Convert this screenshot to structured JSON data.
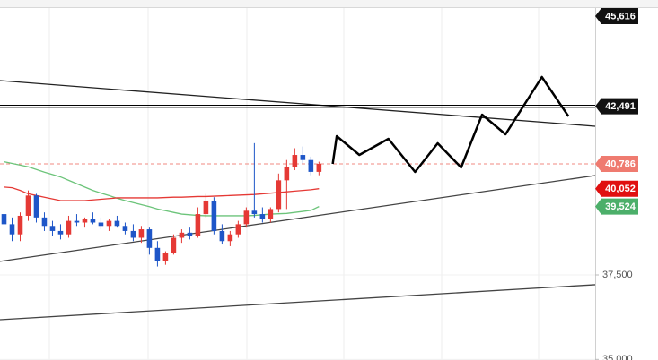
{
  "chart_data": {
    "type": "candlestick",
    "up_color": "#e53935",
    "down_color": "#1e56c8",
    "xlim": [
      -0.5,
      73.2
    ],
    "ylim": [
      34982,
      45636
    ],
    "yticks": [
      {
        "value": 35000,
        "label": "35,000"
      },
      {
        "value": 37500,
        "label": "37,500"
      }
    ],
    "grid": true,
    "ohlc": [
      [
        39300,
        39500,
        38900,
        39000
      ],
      [
        39000,
        39200,
        38500,
        38700
      ],
      [
        38700,
        39350,
        38500,
        39250
      ],
      [
        39250,
        40000,
        39100,
        39850
      ],
      [
        39850,
        39900,
        39050,
        39200
      ],
      [
        39200,
        39350,
        38800,
        38950
      ],
      [
        38950,
        39100,
        38650,
        38800
      ],
      [
        38800,
        39000,
        38550,
        38700
      ],
      [
        38700,
        39250,
        38600,
        39100
      ],
      [
        39100,
        39300,
        38950,
        39050
      ],
      [
        39050,
        39200,
        38900,
        39150
      ],
      [
        39150,
        39350,
        39000,
        39050
      ],
      [
        39050,
        39200,
        38850,
        38950
      ],
      [
        38950,
        39150,
        38800,
        39100
      ],
      [
        39100,
        39250,
        38900,
        38950
      ],
      [
        38950,
        39050,
        38700,
        38800
      ],
      [
        38800,
        39000,
        38500,
        38600
      ],
      [
        38600,
        38950,
        38450,
        38850
      ],
      [
        38850,
        38900,
        38100,
        38300
      ],
      [
        38300,
        38500,
        37750,
        37900
      ],
      [
        37900,
        38200,
        37800,
        38150
      ],
      [
        38150,
        38700,
        38100,
        38600
      ],
      [
        38600,
        38850,
        38450,
        38750
      ],
      [
        38750,
        38900,
        38550,
        38650
      ],
      [
        38650,
        39500,
        38600,
        39300
      ],
      [
        39300,
        39900,
        39200,
        39700
      ],
      [
        39700,
        39800,
        38700,
        38800
      ],
      [
        38800,
        39000,
        38400,
        38500
      ],
      [
        38500,
        38800,
        38350,
        38700
      ],
      [
        38700,
        39100,
        38600,
        39000
      ],
      [
        39000,
        39500,
        38900,
        39400
      ],
      [
        39400,
        41400,
        39200,
        39300
      ],
      [
        39300,
        39500,
        39050,
        39150
      ],
      [
        39150,
        39500,
        39050,
        39450
      ],
      [
        39450,
        40500,
        39350,
        40300
      ],
      [
        40300,
        40900,
        39450,
        40700
      ],
      [
        40700,
        41250,
        40600,
        41050
      ],
      [
        41050,
        41300,
        40800,
        40900
      ],
      [
        40900,
        41000,
        40450,
        40550
      ],
      [
        40550,
        40850,
        40450,
        40786
      ]
    ],
    "overlays": [
      {
        "color": "#6cc47a",
        "values": [
          40850,
          40800,
          40750,
          40700,
          40620,
          40540,
          40470,
          40400,
          40300,
          40200,
          40100,
          40000,
          39920,
          39850,
          39770,
          39700,
          39640,
          39580,
          39520,
          39450,
          39400,
          39350,
          39300,
          39280,
          39260,
          39250,
          39250,
          39250,
          39250,
          39250,
          39250,
          39260,
          39280,
          39300,
          39310,
          39320,
          39350,
          39380,
          39410,
          39524
        ]
      },
      {
        "color": "#e53935",
        "values": [
          40100,
          40080,
          40000,
          39900,
          39850,
          39800,
          39750,
          39700,
          39700,
          39700,
          39700,
          39720,
          39740,
          39760,
          39780,
          39780,
          39780,
          39780,
          39780,
          39780,
          39790,
          39800,
          39800,
          39810,
          39820,
          39820,
          39830,
          39840,
          39850,
          39860,
          39870,
          39880,
          39900,
          39920,
          39940,
          39960,
          39980,
          40000,
          40020,
          40052
        ]
      }
    ],
    "projection": {
      "color": "#000000",
      "x": [
        40.7,
        41.2,
        44,
        47.6,
        50.9,
        53.7,
        56.6,
        59.2,
        62.1,
        66.6,
        69.9
      ],
      "values": [
        40786,
        41608,
        41051,
        41528,
        40548,
        41396,
        40680,
        42244,
        41661,
        43357,
        42191
      ]
    },
    "trendlines": [
      {
        "color": "#222222",
        "x": [
          -0.5,
          73.2
        ],
        "values": [
          43250,
          41900
        ]
      },
      {
        "color": "#444444",
        "x": [
          -0.5,
          73.2
        ],
        "values": [
          37900,
          40442
        ]
      },
      {
        "color": "#444444",
        "x": [
          -0.5,
          73.2
        ],
        "values": [
          36175,
          37210
        ]
      }
    ],
    "hlines": [
      {
        "color": "#000000",
        "value": 42491,
        "style": "double"
      },
      {
        "color": "#f08a80",
        "value": 40786,
        "style": "dashed"
      }
    ],
    "price_badges": [
      {
        "value": 45616,
        "label": "45,616",
        "color": "#111111"
      },
      {
        "value": 42491,
        "label": "42,491",
        "color": "#111111"
      },
      {
        "value": 40786,
        "label": "40,786",
        "color": "#ef7b70"
      },
      {
        "value": 40052,
        "label": "40,052",
        "color": "#e01010"
      },
      {
        "value": 39524,
        "label": "39,524",
        "color": "#4caf6a"
      }
    ]
  }
}
